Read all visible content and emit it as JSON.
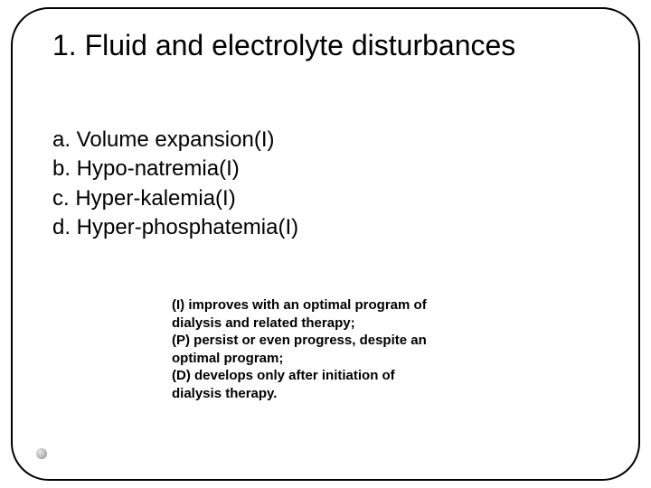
{
  "title": "1. Fluid and electrolyte disturbances",
  "list": {
    "items": [
      "a. Volume expansion(I)",
      "b. Hypo-natremia(I)",
      "c. Hyper-kalemia(I)",
      "d. Hyper-phosphatemia(I)"
    ]
  },
  "footnote": {
    "lines": [
      "(I) improves with an optimal program of",
      "dialysis and related  therapy;",
      "(P) persist or even progress, despite an",
      "optimal program;",
      "(D) develops only after initiation of",
      "dialysis therapy."
    ]
  },
  "colors": {
    "text": "#000000",
    "border": "#000000",
    "background": "#ffffff"
  },
  "typography": {
    "title_fontsize": 32,
    "list_fontsize": 24,
    "footnote_fontsize": 15,
    "footnote_weight": "bold",
    "font_family": "Arial"
  },
  "layout": {
    "border_radius": 42,
    "border_width": 2
  }
}
